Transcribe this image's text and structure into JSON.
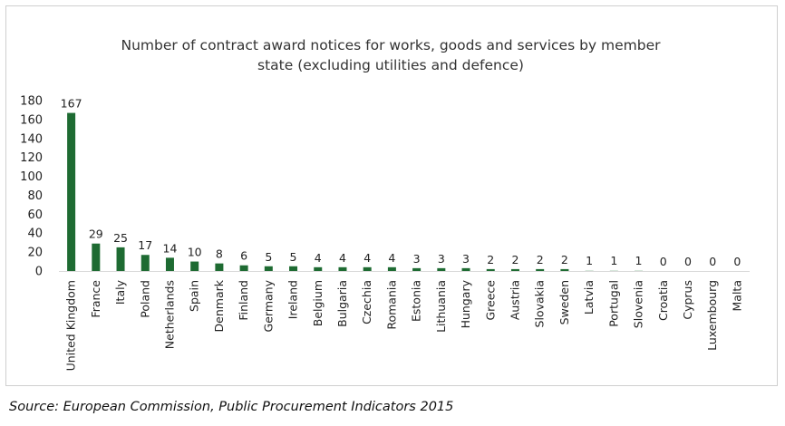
{
  "chart_data": {
    "type": "bar",
    "title": "Number of contract award notices for works, goods and services by member state (excluding utilities and defence)",
    "title_lines": [
      "Number of contract award notices for works, goods and services by member",
      "state (excluding utilities and defence)"
    ],
    "categories": [
      "United Kingdom",
      "France",
      "Italy",
      "Poland",
      "Netherlands",
      "Spain",
      "Denmark",
      "Finland",
      "Germany",
      "Ireland",
      "Belgium",
      "Bulgaria",
      "Czechia",
      "Romania",
      "Estonia",
      "Lithuania",
      "Hungary",
      "Greece",
      "Austria",
      "Slovakia",
      "Sweden",
      "Latvia",
      "Portugal",
      "Slovenia",
      "Croatia",
      "Cyprus",
      "Luxembourg",
      "Malta"
    ],
    "values": [
      167,
      29,
      25,
      17,
      14,
      10,
      8,
      6,
      5,
      5,
      4,
      4,
      4,
      4,
      3,
      3,
      3,
      2,
      2,
      2,
      2,
      1,
      1,
      1,
      0,
      0,
      0,
      0
    ],
    "xlabel": "",
    "ylabel": "",
    "ylim": [
      0,
      180
    ],
    "yticks": [
      0,
      20,
      40,
      60,
      80,
      100,
      120,
      140,
      160,
      180
    ],
    "grid": false,
    "legend": "none",
    "bar_color": "#1e6b32",
    "faded_bar_color": "#d6e6da"
  },
  "source_note": "Source: European Commission, Public Procurement Indicators 2015"
}
